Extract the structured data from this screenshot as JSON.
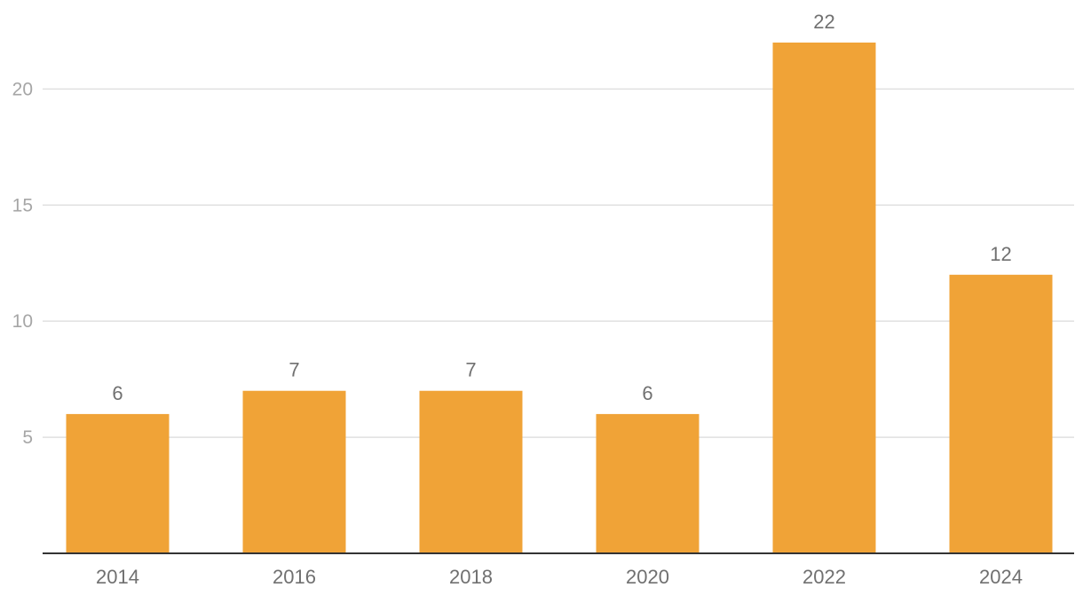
{
  "chart_data": {
    "type": "bar",
    "categories": [
      "2014",
      "2016",
      "2018",
      "2020",
      "2022",
      "2024"
    ],
    "values": [
      6,
      7,
      7,
      6,
      22,
      12
    ],
    "data_labels": [
      "6",
      "7",
      "7",
      "6",
      "22",
      "12"
    ],
    "title": "",
    "xlabel": "",
    "ylabel": "",
    "ylim": [
      0,
      22
    ],
    "yticks": [
      5,
      10,
      15,
      20
    ],
    "ytick_labels": [
      "5",
      "10",
      "15",
      "20"
    ],
    "grid": true,
    "legend": "none",
    "bar_color": "#f0a337"
  }
}
